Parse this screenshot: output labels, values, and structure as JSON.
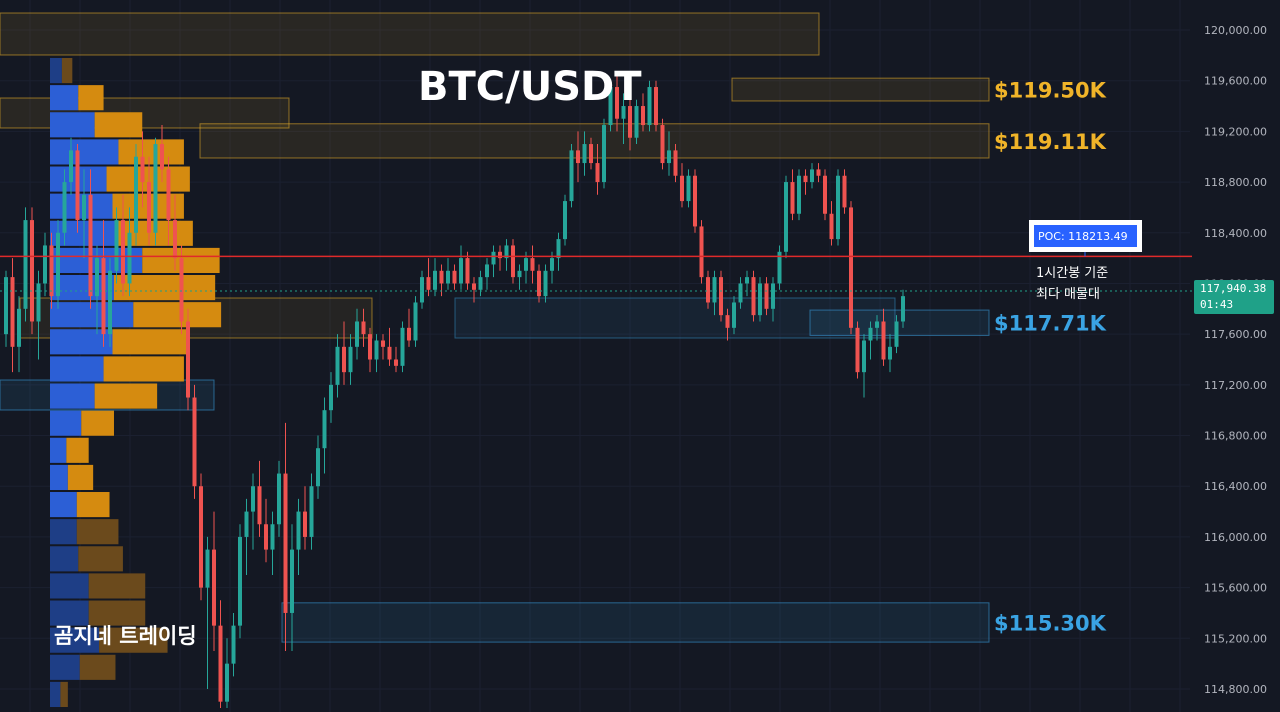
{
  "chart_data": {
    "type": "candlestick",
    "title": "BTC/USDT",
    "watermark": "곰지네 트레이딩",
    "y_axis": {
      "range": [
        114650,
        120400
      ],
      "ticks": [
        "120,000.00",
        "119,600.00",
        "119,200.00",
        "118,800.00",
        "118,400.00",
        "118,000.00",
        "117,600.00",
        "117,200.00",
        "116,800.00",
        "116,400.00",
        "116,000.00",
        "115,600.00",
        "115,200.00",
        "114,800.00"
      ],
      "tick_values": [
        120000,
        119600,
        119200,
        118800,
        118400,
        118000,
        117600,
        117200,
        116800,
        116400,
        116000,
        115600,
        115200,
        114800
      ]
    },
    "last_price": {
      "label": "117,940.38",
      "countdown": "01:43",
      "value": 117940.38
    },
    "poc": {
      "label": "POC: 118213.49",
      "value": 118213.49,
      "note_line1": "1시간봉 기준",
      "note_line2": "최다 매물대"
    },
    "zones": [
      {
        "label": "$119.50K",
        "low": 119440,
        "high": 119620,
        "color": "#f0b429"
      },
      {
        "label": "$119.11K",
        "low": 118990,
        "high": 119260,
        "color": "#f0b429"
      },
      {
        "label": "$117.71K",
        "low": 117590,
        "high": 117790,
        "color": "#3aa3e3"
      },
      {
        "label": "$115.30K",
        "low": 115170,
        "high": 115480,
        "color": "#3aa3e3"
      }
    ],
    "series": [
      {
        "name": "candles",
        "ohlc": [
          [
            117600,
            118100,
            117500,
            118050
          ],
          [
            118050,
            118200,
            117300,
            117500
          ],
          [
            117500,
            117900,
            117300,
            117800
          ],
          [
            117800,
            118600,
            117700,
            118500
          ],
          [
            118500,
            118600,
            117600,
            117700
          ],
          [
            117700,
            118100,
            117400,
            118000
          ],
          [
            118000,
            118400,
            117900,
            118300
          ],
          [
            118300,
            118400,
            117800,
            117900
          ],
          [
            117900,
            118500,
            117800,
            118400
          ],
          [
            118400,
            118900,
            118300,
            118800
          ],
          [
            118800,
            119150,
            118700,
            119050
          ],
          [
            119050,
            119100,
            118400,
            118500
          ],
          [
            118500,
            118900,
            118200,
            118700
          ],
          [
            118700,
            118900,
            117800,
            117900
          ],
          [
            117900,
            118300,
            117600,
            118200
          ],
          [
            118200,
            118500,
            117500,
            117600
          ],
          [
            117600,
            118200,
            117500,
            118100
          ],
          [
            118100,
            118600,
            118000,
            118500
          ],
          [
            118500,
            118700,
            117900,
            118000
          ],
          [
            118000,
            118600,
            117900,
            118400
          ],
          [
            118400,
            119100,
            118300,
            119000
          ],
          [
            119000,
            119200,
            118600,
            118800
          ],
          [
            118800,
            119000,
            118300,
            118400
          ],
          [
            118400,
            119150,
            118300,
            119100
          ],
          [
            119100,
            119250,
            118800,
            118900
          ],
          [
            118900,
            119000,
            118300,
            118500
          ],
          [
            118500,
            118700,
            118100,
            118200
          ],
          [
            118200,
            118300,
            117600,
            117700
          ],
          [
            117700,
            117800,
            117000,
            117100
          ],
          [
            117100,
            117200,
            116300,
            116400
          ],
          [
            116400,
            116500,
            115500,
            115600
          ],
          [
            115600,
            116000,
            114800,
            115900
          ],
          [
            115900,
            116200,
            115100,
            115300
          ],
          [
            115300,
            115500,
            114650,
            114700
          ],
          [
            114700,
            115200,
            114650,
            115000
          ],
          [
            115000,
            115400,
            114900,
            115300
          ],
          [
            115300,
            116100,
            115200,
            116000
          ],
          [
            116000,
            116300,
            115700,
            116200
          ],
          [
            116200,
            116500,
            115900,
            116400
          ],
          [
            116400,
            116600,
            116000,
            116100
          ],
          [
            116100,
            116300,
            115800,
            115900
          ],
          [
            115900,
            116200,
            115700,
            116100
          ],
          [
            116100,
            116600,
            116000,
            116500
          ],
          [
            116500,
            116900,
            115100,
            115400
          ],
          [
            115400,
            116100,
            115100,
            115900
          ],
          [
            115900,
            116300,
            115700,
            116200
          ],
          [
            116200,
            116400,
            115900,
            116000
          ],
          [
            116000,
            116500,
            115900,
            116400
          ],
          [
            116400,
            116800,
            116300,
            116700
          ],
          [
            116700,
            117100,
            116500,
            117000
          ],
          [
            117000,
            117300,
            116900,
            117200
          ],
          [
            117200,
            117600,
            117100,
            117500
          ],
          [
            117500,
            117700,
            117200,
            117300
          ],
          [
            117300,
            117600,
            117200,
            117500
          ],
          [
            117500,
            117800,
            117400,
            117700
          ],
          [
            117700,
            117800,
            117500,
            117600
          ],
          [
            117600,
            117650,
            117300,
            117400
          ],
          [
            117400,
            117600,
            117300,
            117550
          ],
          [
            117550,
            117600,
            117400,
            117500
          ],
          [
            117500,
            117650,
            117350,
            117400
          ],
          [
            117400,
            117500,
            117300,
            117350
          ],
          [
            117350,
            117700,
            117300,
            117650
          ],
          [
            117650,
            117800,
            117500,
            117550
          ],
          [
            117550,
            117900,
            117500,
            117850
          ],
          [
            117850,
            118100,
            117800,
            118050
          ],
          [
            118050,
            118200,
            117900,
            117950
          ],
          [
            117950,
            118200,
            117900,
            118100
          ],
          [
            118100,
            118150,
            117900,
            118000
          ],
          [
            118000,
            118200,
            117950,
            118100
          ],
          [
            118100,
            118150,
            117950,
            118000
          ],
          [
            118000,
            118300,
            117950,
            118200
          ],
          [
            118200,
            118250,
            117950,
            118000
          ],
          [
            118000,
            118050,
            117850,
            117950
          ],
          [
            117950,
            118100,
            117900,
            118050
          ],
          [
            118050,
            118200,
            117950,
            118150
          ],
          [
            118150,
            118300,
            118050,
            118250
          ],
          [
            118250,
            118300,
            118100,
            118200
          ],
          [
            118200,
            118350,
            118100,
            118300
          ],
          [
            118300,
            118350,
            118000,
            118050
          ],
          [
            118050,
            118150,
            117950,
            118100
          ],
          [
            118100,
            118250,
            118000,
            118200
          ],
          [
            118200,
            118300,
            118000,
            118100
          ],
          [
            118100,
            118150,
            117850,
            117900
          ],
          [
            117900,
            118150,
            117850,
            118100
          ],
          [
            118100,
            118250,
            118000,
            118200
          ],
          [
            118200,
            118400,
            118100,
            118350
          ],
          [
            118350,
            118700,
            118300,
            118650
          ],
          [
            118650,
            119100,
            118600,
            119050
          ],
          [
            119050,
            119200,
            118800,
            118950
          ],
          [
            118950,
            119200,
            118850,
            119100
          ],
          [
            119100,
            119150,
            118900,
            118950
          ],
          [
            118950,
            119100,
            118700,
            118800
          ],
          [
            118800,
            119300,
            118750,
            119250
          ],
          [
            119250,
            119600,
            119200,
            119550
          ],
          [
            119550,
            119650,
            119200,
            119300
          ],
          [
            119300,
            119500,
            119100,
            119400
          ],
          [
            119400,
            119550,
            119050,
            119150
          ],
          [
            119150,
            119450,
            119100,
            119400
          ],
          [
            119400,
            119500,
            119200,
            119250
          ],
          [
            119250,
            119600,
            119200,
            119550
          ],
          [
            119550,
            119600,
            119200,
            119250
          ],
          [
            119250,
            119300,
            118900,
            118950
          ],
          [
            118950,
            119200,
            118850,
            119050
          ],
          [
            119050,
            119100,
            118800,
            118850
          ],
          [
            118850,
            118950,
            118600,
            118650
          ],
          [
            118650,
            118900,
            118600,
            118850
          ],
          [
            118850,
            118900,
            118400,
            118450
          ],
          [
            118450,
            118500,
            118000,
            118050
          ],
          [
            118050,
            118100,
            117800,
            117850
          ],
          [
            117850,
            118100,
            117750,
            118050
          ],
          [
            118050,
            118100,
            117700,
            117750
          ],
          [
            117750,
            117800,
            117550,
            117650
          ],
          [
            117650,
            117900,
            117600,
            117850
          ],
          [
            117850,
            118050,
            117800,
            118000
          ],
          [
            118000,
            118100,
            117900,
            118050
          ],
          [
            118050,
            118100,
            117700,
            117750
          ],
          [
            117750,
            118050,
            117700,
            118000
          ],
          [
            118000,
            118050,
            117750,
            117800
          ],
          [
            117800,
            118050,
            117700,
            118000
          ],
          [
            118000,
            118300,
            117950,
            118250
          ],
          [
            118250,
            118850,
            118200,
            118800
          ],
          [
            118800,
            118900,
            118500,
            118550
          ],
          [
            118550,
            118900,
            118500,
            118850
          ],
          [
            118850,
            118900,
            118700,
            118800
          ],
          [
            118800,
            118950,
            118750,
            118900
          ],
          [
            118900,
            118950,
            118800,
            118850
          ],
          [
            118850,
            118900,
            118500,
            118550
          ],
          [
            118550,
            118650,
            118300,
            118350
          ],
          [
            118350,
            118900,
            118300,
            118850
          ],
          [
            118850,
            118900,
            118550,
            118600
          ],
          [
            118600,
            118650,
            117600,
            117650
          ],
          [
            117650,
            117700,
            117250,
            117300
          ],
          [
            117300,
            117600,
            117100,
            117550
          ],
          [
            117550,
            117700,
            117400,
            117650
          ],
          [
            117650,
            117750,
            117550,
            117700
          ],
          [
            117700,
            117800,
            117350,
            117400
          ],
          [
            117400,
            117600,
            117300,
            117500
          ],
          [
            117500,
            117750,
            117450,
            117700
          ],
          [
            117700,
            117950,
            117650,
            117900
          ]
        ]
      }
    ],
    "volume_profile": {
      "price_high": 120000,
      "price_low": 114650,
      "buy_fractions": [
        0.08,
        0.19,
        0.3,
        0.46,
        0.38,
        0.42,
        0.46,
        0.62,
        0.43,
        0.56,
        0.42,
        0.36,
        0.3,
        0.21,
        0.11,
        0.12,
        0.18,
        0.18,
        0.19,
        0.26,
        0.26,
        0.33,
        0.2,
        0.07
      ],
      "sell_fractions": [
        0.07,
        0.17,
        0.32,
        0.44,
        0.56,
        0.48,
        0.5,
        0.52,
        0.68,
        0.59,
        0.5,
        0.54,
        0.42,
        0.22,
        0.15,
        0.17,
        0.22,
        0.28,
        0.3,
        0.38,
        0.38,
        0.46,
        0.24,
        0.05
      ]
    }
  }
}
